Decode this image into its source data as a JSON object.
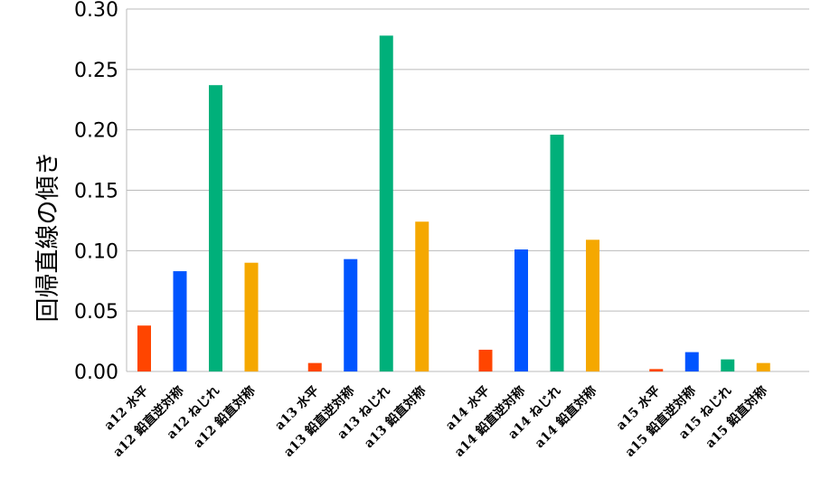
{
  "chart_data": {
    "type": "bar",
    "title": "",
    "xlabel": "",
    "ylabel": "回帰直線の傾き",
    "ylim": [
      0,
      0.3
    ],
    "yticks": [
      "0.00",
      "0.05",
      "0.10",
      "0.15",
      "0.20",
      "0.25",
      "0.30"
    ],
    "grid": true,
    "legend": "none",
    "colors": {
      "水平": "#ff4500",
      "鉛直逆対称": "#0055ff",
      "ねじれ": "#00b07a",
      "鉛直対称": "#f5a800",
      "grid": "#bbbbbb"
    },
    "groups": [
      {
        "bars": [
          {
            "label": "a12 水平",
            "component": "水平",
            "value": 0.038
          },
          {
            "label": "a12 鉛直逆対称",
            "component": "鉛直逆対称",
            "value": 0.083
          },
          {
            "label": "a12 ねじれ",
            "component": "ねじれ",
            "value": 0.237
          },
          {
            "label": "a12 鉛直対称",
            "component": "鉛直対称",
            "value": 0.09
          }
        ]
      },
      {
        "bars": [
          {
            "label": "a13 水平",
            "component": "水平",
            "value": 0.007
          },
          {
            "label": "a13 鉛直逆対称",
            "component": "鉛直逆対称",
            "value": 0.093
          },
          {
            "label": "a13 ねじれ",
            "component": "ねじれ",
            "value": 0.278
          },
          {
            "label": "a13 鉛直対称",
            "component": "鉛直対称",
            "value": 0.124
          }
        ]
      },
      {
        "bars": [
          {
            "label": "a14 水平",
            "component": "水平",
            "value": 0.018
          },
          {
            "label": "a14 鉛直逆対称",
            "component": "鉛直逆対称",
            "value": 0.101
          },
          {
            "label": "a14 ねじれ",
            "component": "ねじれ",
            "value": 0.196
          },
          {
            "label": "a14 鉛直対称",
            "component": "鉛直対称",
            "value": 0.109
          }
        ]
      },
      {
        "bars": [
          {
            "label": "a15 水平",
            "component": "水平",
            "value": 0.002
          },
          {
            "label": "a15 鉛直逆対称",
            "component": "鉛直逆対称",
            "value": 0.016
          },
          {
            "label": "a15 ねじれ",
            "component": "ねじれ",
            "value": 0.01
          },
          {
            "label": "a15 鉛直対称",
            "component": "鉛直対称",
            "value": 0.007
          }
        ]
      }
    ]
  }
}
